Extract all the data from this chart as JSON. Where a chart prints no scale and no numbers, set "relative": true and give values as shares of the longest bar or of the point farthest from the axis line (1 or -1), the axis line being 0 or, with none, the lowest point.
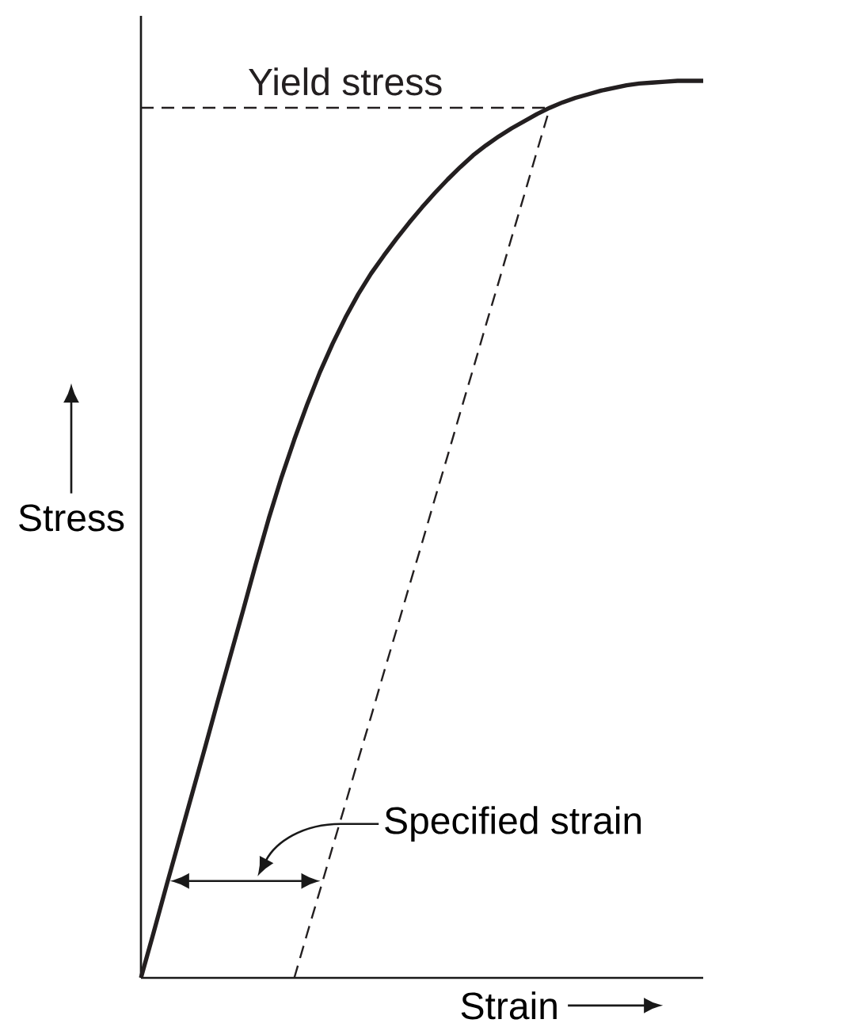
{
  "chart_data": {
    "type": "line",
    "relative": true,
    "xlabel": "Strain",
    "ylabel": "Stress",
    "categories": [
      null,
      null,
      null,
      null,
      null,
      null,
      null,
      null,
      null,
      null,
      null,
      null,
      null,
      null,
      null,
      null,
      null,
      null,
      null,
      null,
      null,
      null,
      null,
      null,
      null,
      null,
      null,
      null,
      null,
      null,
      null,
      null,
      null,
      null,
      null,
      null,
      null,
      null,
      null,
      null,
      null,
      null,
      null,
      null,
      null
    ],
    "series": [
      {
        "color": "#231f20",
        "line_style": "solid",
        "values": [
          0,
          0.051,
          0.103,
          0.154,
          0.205,
          0.256,
          0.308,
          0.359,
          0.41,
          0.462,
          0.512,
          0.558,
          0.6,
          0.639,
          0.675,
          0.707,
          0.736,
          0.762,
          0.785,
          0.805,
          0.824,
          0.842,
          0.859,
          0.875,
          0.89,
          0.904,
          0.917,
          0.928,
          0.938,
          0.947,
          0.955,
          0.963,
          0.97,
          0.976,
          0.981,
          0.985,
          0.989,
          0.992,
          0.995,
          0.997,
          0.998,
          0.999,
          1,
          1,
          1
        ]
      },
      {
        "name": "Yield stress",
        "color": "#231f20",
        "line_style": "dashed",
        "values": [
          0.97,
          0.97,
          0.97,
          0.97,
          0.97,
          0.97,
          0.97,
          0.97,
          0.97,
          0.97,
          0.97,
          0.97,
          0.97,
          0.97,
          0.97,
          0.97,
          0.97,
          0.97,
          0.97,
          0.97,
          0.97,
          0.97,
          0.97,
          0.97,
          0.97,
          0.97,
          0.97,
          0.97,
          0.97,
          0.97,
          0.97,
          0.97,
          0.97,
          null,
          null,
          null,
          null,
          null,
          null,
          null,
          null,
          null,
          null,
          null,
          null
        ]
      },
      {
        "color": "#231f20",
        "line_style": "dashed",
        "values": [
          null,
          null,
          null,
          null,
          null,
          null,
          null,
          null,
          null,
          null,
          null,
          null,
          0,
          0.049,
          0.097,
          0.146,
          0.194,
          0.243,
          0.291,
          0.34,
          0.388,
          0.437,
          0.485,
          0.534,
          0.582,
          0.631,
          0.679,
          0.728,
          0.776,
          0.825,
          0.873,
          0.922,
          0.97,
          null,
          null,
          null,
          null,
          null,
          null,
          null,
          null,
          null,
          null,
          null,
          null
        ]
      }
    ],
    "annotations": [
      "Specified strain"
    ]
  }
}
